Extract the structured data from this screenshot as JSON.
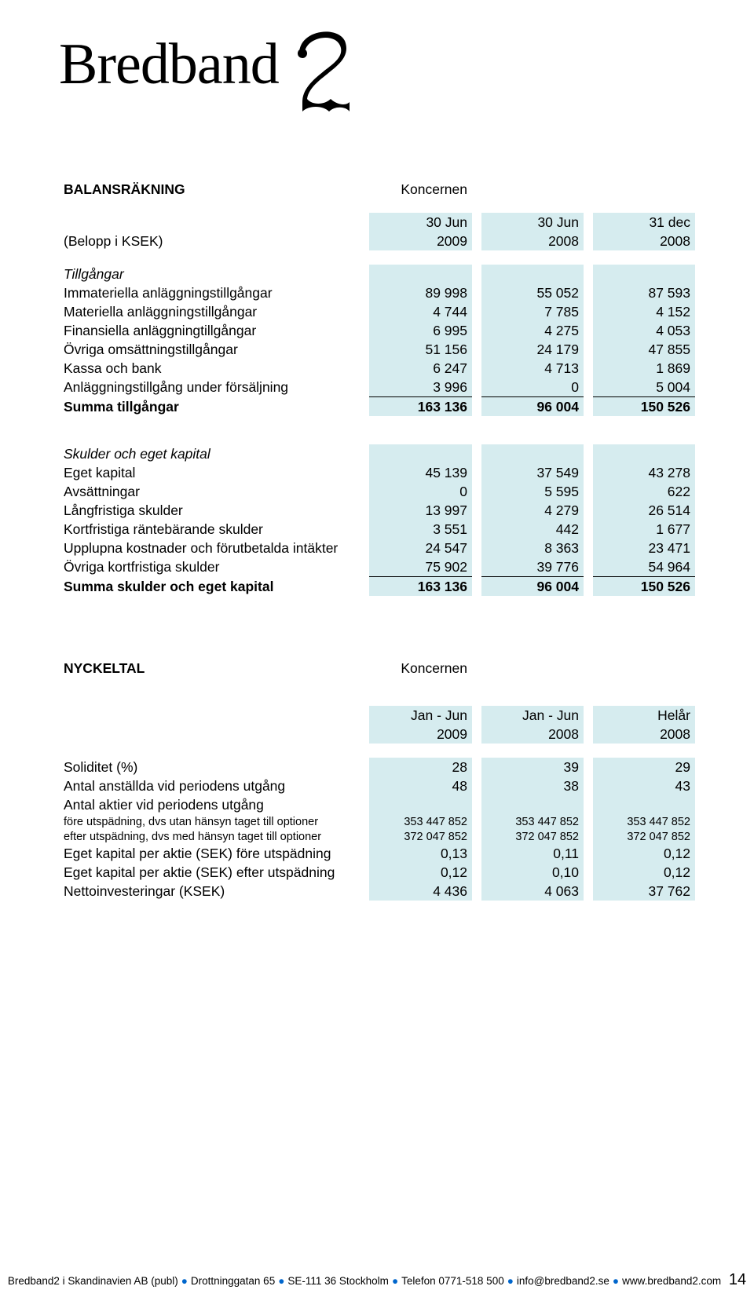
{
  "logo_text": "Bredband",
  "balance": {
    "title": "BALANSRÄKNING",
    "scope": "Koncernen",
    "periods_top": [
      "30 Jun",
      "30 Jun",
      "31 dec"
    ],
    "periods_bot": [
      "2009",
      "2008",
      "2008"
    ],
    "subtitle": "(Belopp i KSEK)",
    "assets_heading": "Tillgångar",
    "asset_rows": [
      {
        "label": "Immateriella anläggningstillgångar",
        "v": [
          "89 998",
          "55 052",
          "87 593"
        ]
      },
      {
        "label": "Materiella anläggningstillgångar",
        "v": [
          "4 744",
          "7 785",
          "4 152"
        ]
      },
      {
        "label": "Finansiella anläggningtillgångar",
        "v": [
          "6 995",
          "4 275",
          "4 053"
        ]
      },
      {
        "label": "Övriga omsättningstillgångar",
        "v": [
          "51 156",
          "24 179",
          "47 855"
        ]
      },
      {
        "label": "Kassa och bank",
        "v": [
          "6 247",
          "4 713",
          "1 869"
        ]
      },
      {
        "label": "Anläggningstillgång under försäljning",
        "v": [
          "3 996",
          "0",
          "5 004"
        ]
      }
    ],
    "assets_total": {
      "label": "Summa tillgångar",
      "v": [
        "163 136",
        "96 004",
        "150 526"
      ]
    },
    "equity_heading": "Skulder och eget kapital",
    "equity_rows": [
      {
        "label": "Eget kapital",
        "v": [
          "45 139",
          "37 549",
          "43 278"
        ]
      },
      {
        "label": "Avsättningar",
        "v": [
          "0",
          "5 595",
          "622"
        ]
      },
      {
        "label": "Långfristiga skulder",
        "v": [
          "13 997",
          "4 279",
          "26 514"
        ]
      },
      {
        "label": "Kortfristiga räntebärande skulder",
        "v": [
          "3 551",
          "442",
          "1 677"
        ]
      },
      {
        "label": "Upplupna kostnader och förutbetalda intäkter",
        "v": [
          "24 547",
          "8 363",
          "23 471"
        ]
      },
      {
        "label": "Övriga kortfristiga skulder",
        "v": [
          "75 902",
          "39 776",
          "54 964"
        ]
      }
    ],
    "equity_total": {
      "label": "Summa skulder och eget kapital",
      "v": [
        "163 136",
        "96 004",
        "150 526"
      ]
    }
  },
  "kpis": {
    "title": "NYCKELTAL",
    "scope": "Koncernen",
    "periods_top": [
      "Jan - Jun",
      "Jan - Jun",
      "Helår"
    ],
    "periods_bot": [
      "2009",
      "2008",
      "2008"
    ],
    "rows": [
      {
        "label": "Soliditet (%)",
        "v": [
          "28",
          "39",
          "29"
        ],
        "small": false
      },
      {
        "label": "Antal anställda vid periodens utgång",
        "v": [
          "48",
          "38",
          "43"
        ],
        "small": false
      },
      {
        "label": "Antal aktier vid periodens utgång",
        "v": [
          "",
          "",
          ""
        ],
        "small": false
      },
      {
        "label": "före utspädning, dvs utan hänsyn taget till optioner",
        "v": [
          "353 447 852",
          "353 447 852",
          "353 447 852"
        ],
        "small": true
      },
      {
        "label": "efter utspädning, dvs med hänsyn taget till optioner",
        "v": [
          "372 047 852",
          "372 047 852",
          "372 047 852"
        ],
        "small": true
      },
      {
        "label": "Eget kapital per aktie (SEK) före utspädning",
        "v": [
          "0,13",
          "0,11",
          "0,12"
        ],
        "small": false
      },
      {
        "label": "Eget kapital per aktie (SEK) efter utspädning",
        "v": [
          "0,12",
          "0,10",
          "0,12"
        ],
        "small": false
      },
      {
        "label": "Nettoinvesteringar (KSEK)",
        "v": [
          "4 436",
          "4 063",
          "37 762"
        ],
        "small": false
      }
    ]
  },
  "footer": {
    "parts": [
      "Bredband2 i Skandinavien AB (publ)",
      "Drottninggatan 65",
      "SE-111 36 Stockholm",
      "Telefon 0771-518 500",
      "info@bredband2.se",
      "www.bredband2.com"
    ],
    "page_number": "14"
  },
  "colors": {
    "highlight": "#d6ecef",
    "text": "#000000",
    "background": "#ffffff",
    "footer_dot": "#0066cc"
  }
}
